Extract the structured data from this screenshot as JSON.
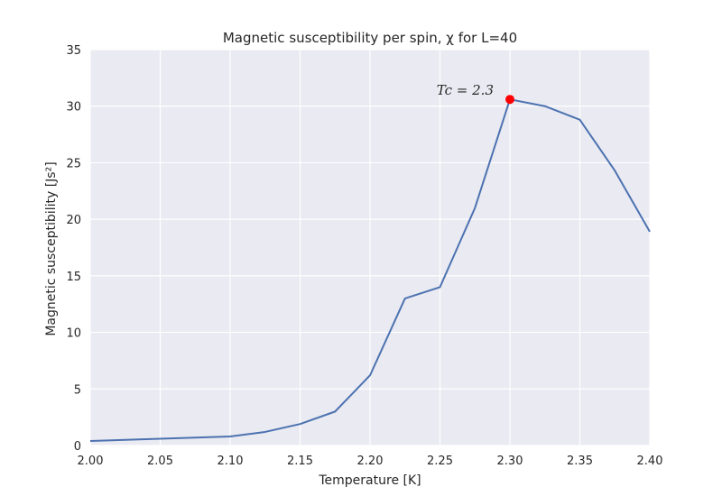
{
  "chart_data": {
    "type": "line",
    "title": "Magnetic susceptibility per spin, χ for L=40",
    "xlabel": "Temperature [K]",
    "ylabel": "Magnetic susceptibility [Js²]",
    "xlim": [
      2.0,
      2.4
    ],
    "ylim": [
      0,
      35
    ],
    "xticks": [
      2.0,
      2.05,
      2.1,
      2.15,
      2.2,
      2.25,
      2.3,
      2.35,
      2.4
    ],
    "xtick_labels": [
      "2.00",
      "2.05",
      "2.10",
      "2.15",
      "2.20",
      "2.25",
      "2.30",
      "2.35",
      "2.40"
    ],
    "yticks": [
      0,
      5,
      10,
      15,
      20,
      25,
      30,
      35
    ],
    "ytick_labels": [
      "0",
      "5",
      "10",
      "15",
      "20",
      "25",
      "30",
      "35"
    ],
    "grid": true,
    "series": [
      {
        "color": "#4c72b0",
        "x": [
          2.0,
          2.025,
          2.05,
          2.075,
          2.1,
          2.125,
          2.15,
          2.175,
          2.2,
          2.225,
          2.25,
          2.275,
          2.3,
          2.325,
          2.35,
          2.375,
          2.4
        ],
        "y": [
          0.4,
          0.5,
          0.6,
          0.7,
          0.8,
          1.2,
          1.9,
          3.0,
          6.2,
          13.0,
          14.0,
          21.0,
          30.6,
          30.0,
          28.8,
          24.3,
          18.9
        ]
      }
    ],
    "marker": {
      "x": 2.3,
      "y": 30.6,
      "color": "#ff0000"
    },
    "annotation": {
      "text": "Tc = 2.3",
      "x": 2.3,
      "y": 30.6
    }
  },
  "colors": {
    "plot_background": "#eaeaf2",
    "grid": "#ffffff",
    "text": "#262626"
  }
}
